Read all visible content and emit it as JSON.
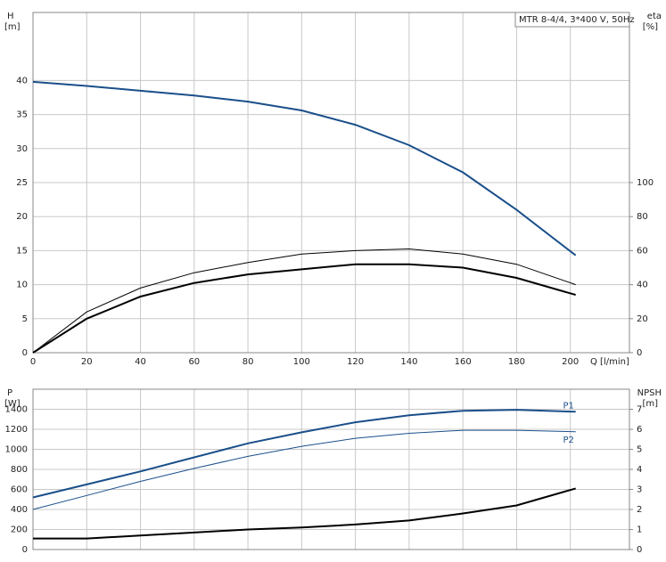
{
  "chart_data": [
    {
      "type": "line",
      "title": "MTR 8-4/4, 3*400 V, 50Hz",
      "xlabel": "Q [l/min]",
      "ylabel": "H",
      "yunit": "[m]",
      "y2label": "eta",
      "y2unit": "[%]",
      "x": [
        0,
        20,
        40,
        60,
        80,
        100,
        120,
        140,
        160,
        180,
        202
      ],
      "xlim": [
        0,
        222
      ],
      "xticks": [
        0,
        20,
        40,
        60,
        80,
        100,
        120,
        140,
        160,
        180,
        200
      ],
      "ylim": [
        0,
        50
      ],
      "yticks": [
        0,
        5,
        10,
        15,
        20,
        25,
        30,
        35,
        40
      ],
      "y2lim": [
        0,
        200
      ],
      "y2ticks": [
        0,
        20,
        40,
        60,
        80,
        100
      ],
      "grid": true,
      "series": [
        {
          "color": "#1a4f8a",
          "width": 2,
          "values": [
            39.8,
            39.2,
            38.5,
            37.8,
            36.9,
            35.6,
            33.5,
            30.5,
            26.5,
            21,
            14.3
          ]
        },
        {
          "color": "#000000",
          "width": 1,
          "axis": "y2",
          "values": [
            0,
            24,
            38,
            47,
            53,
            58,
            60,
            61,
            58,
            52,
            40
          ]
        },
        {
          "color": "#000000",
          "width": 2,
          "axis": "y2",
          "values": [
            0,
            20,
            33,
            41,
            46,
            49,
            52,
            52,
            50,
            44,
            34
          ]
        }
      ]
    },
    {
      "type": "line",
      "ylabel": "P",
      "yunit": "[W]",
      "y2label": "NPSH",
      "y2unit": "[m]",
      "x": [
        0,
        20,
        40,
        60,
        80,
        100,
        120,
        140,
        160,
        180,
        202
      ],
      "xlim": [
        0,
        222
      ],
      "xticks": [
        0,
        20,
        40,
        60,
        80,
        100,
        120,
        140,
        160,
        180,
        200
      ],
      "ylim": [
        0,
        1600
      ],
      "yticks": [
        0,
        200,
        400,
        600,
        800,
        1000,
        1200,
        1400
      ],
      "y2lim": [
        0,
        8
      ],
      "y2ticks": [
        0,
        1,
        2,
        3,
        4,
        5,
        6,
        7
      ],
      "grid": true,
      "series": [
        {
          "name": "P1",
          "color": "#1a4f8a",
          "width": 2,
          "values": [
            520,
            650,
            780,
            920,
            1060,
            1170,
            1270,
            1340,
            1385,
            1395,
            1375
          ]
        },
        {
          "name": "P2",
          "color": "#1a4f8a",
          "width": 1,
          "values": [
            400,
            540,
            680,
            810,
            930,
            1030,
            1110,
            1160,
            1190,
            1190,
            1175
          ]
        },
        {
          "color": "#000000",
          "width": 2,
          "axis": "y2",
          "values": [
            0.55,
            0.55,
            0.7,
            0.85,
            1.0,
            1.1,
            1.25,
            1.45,
            1.8,
            2.2,
            3.05
          ]
        }
      ]
    }
  ]
}
